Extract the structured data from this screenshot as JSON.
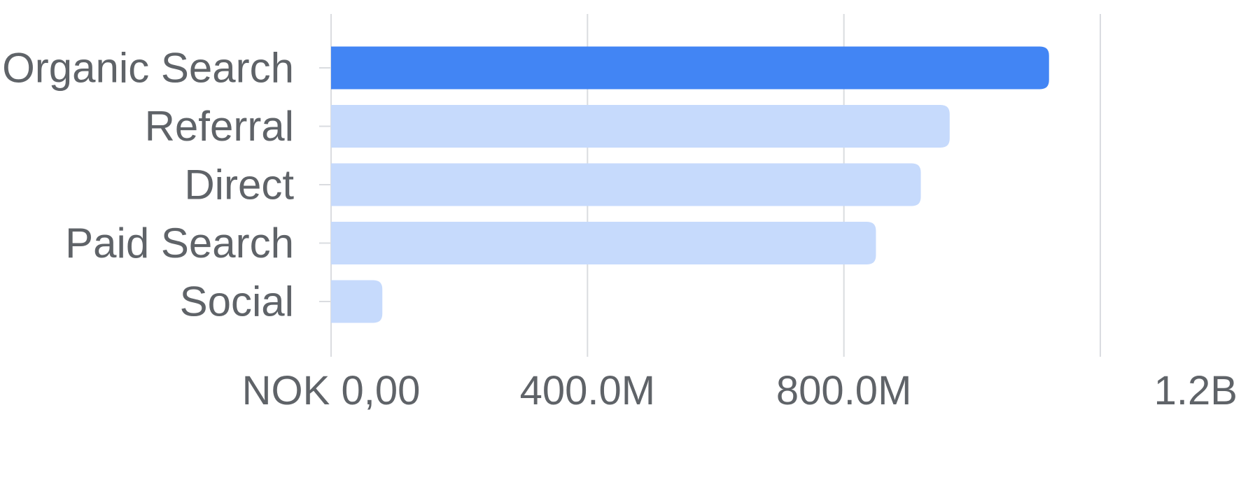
{
  "chart_data": {
    "type": "bar",
    "orientation": "horizontal",
    "categories": [
      "Organic Search",
      "Referral",
      "Direct",
      "Paid Search",
      "Social"
    ],
    "values": [
      1120000000,
      965000000,
      920000000,
      850000000,
      80000000
    ],
    "xlim": [
      0,
      1200000000
    ],
    "xticks": [
      0,
      400000000,
      800000000,
      1200000000
    ],
    "xtick_labels": [
      "NOK 0,00",
      "400.0M",
      "800.0M",
      "1.2B"
    ],
    "title": "",
    "xlabel": "",
    "ylabel": "",
    "grid": "vertical",
    "legend": "none",
    "highlight_index": 0,
    "colors": {
      "highlight": "#4285f4",
      "bar": "#c6dafc",
      "grid": "#dadce0",
      "text": "#5f6368"
    }
  }
}
